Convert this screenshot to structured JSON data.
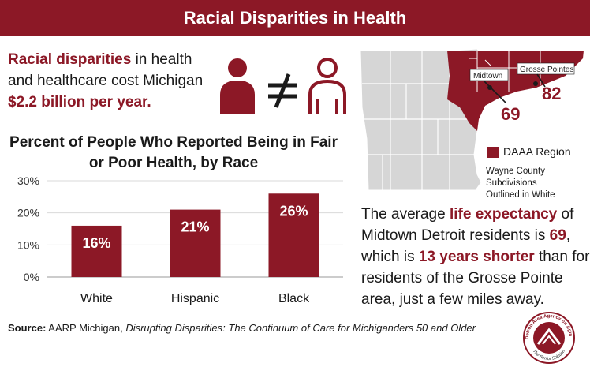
{
  "header": {
    "title": "Racial Disparities in Health"
  },
  "intro": {
    "highlight": "Racial disparities",
    "text1": " in health and healthcare cost Michigan",
    "cost": "$2.2 billion per year."
  },
  "icons": {
    "left": "person-solid-icon",
    "middle": "not-equal-icon",
    "right": "person-outline-icon"
  },
  "map": {
    "midtown_label": "Midtown",
    "grosse_label": "Grosse Pointes",
    "midtown_value": "69",
    "grosse_value": "82",
    "legend_label": "DAAA Region",
    "legend_note_1": "Wayne County Subdivisions",
    "legend_note_2": "Outlined in White",
    "colors": {
      "region": "#8c1826",
      "county": "#d6d6d6"
    }
  },
  "life_expectancy": {
    "p1": "The average ",
    "hl1": "life expectancy",
    "p2": " of Midtown Detroit residents is ",
    "hl2": "69",
    "p3": ", which is ",
    "hl3": "13 years shorter",
    "p4": " than for residents of the Grosse Pointe area, just a few miles away."
  },
  "source": {
    "label": "Source:",
    "org": " AARP Michigan, ",
    "title": "Disrupting Disparities: The Continuum of Care for Michiganders 50 and Older"
  },
  "logo": {
    "top_text": "Detroit Area Agency on Aging",
    "bottom_text": "The Senior Solution"
  },
  "chart_data": {
    "type": "bar",
    "title": "Percent of People Who Reported Being in Fair or Poor Health, by Race",
    "title_line1": "Percent of People Who Reported Being in Fair",
    "title_line2": "or Poor Health, by Race",
    "categories": [
      "White",
      "Hispanic",
      "Black"
    ],
    "values": [
      16,
      21,
      26
    ],
    "value_labels": [
      "16%",
      "21%",
      "26%"
    ],
    "ytick_labels": [
      "0%",
      "10%",
      "20%",
      "30%"
    ],
    "yticks": [
      0,
      10,
      20,
      30
    ],
    "ylim": [
      0,
      30
    ],
    "grid": true,
    "bar_color": "#8c1826"
  }
}
